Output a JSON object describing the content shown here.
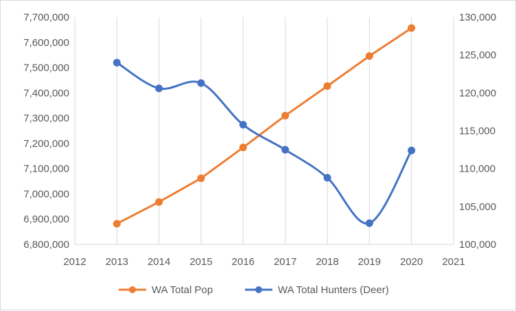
{
  "chart_data": {
    "type": "line",
    "title": "",
    "xlabel": "",
    "ylabel": "",
    "x": [
      2013,
      2014,
      2015,
      2016,
      2017,
      2018,
      2019,
      2020
    ],
    "xlim": [
      2012,
      2021
    ],
    "xticks": [
      "2012",
      "2013",
      "2014",
      "2015",
      "2016",
      "2017",
      "2018",
      "2019",
      "2020",
      "2021"
    ],
    "ylim_left": [
      6800000,
      7700000
    ],
    "yticks_left": [
      "6,800,000",
      "6,900,000",
      "7,000,000",
      "7,100,000",
      "7,200,000",
      "7,300,000",
      "7,400,000",
      "7,500,000",
      "7,600,000",
      "7,700,000"
    ],
    "ylim_right": [
      100000,
      130000
    ],
    "yticks_right": [
      "100,000",
      "105,000",
      "110,000",
      "115,000",
      "120,000",
      "125,000",
      "130,000"
    ],
    "grid": "vertical",
    "legend_position": "bottom",
    "series": [
      {
        "name": "WA Total Pop",
        "axis": "left",
        "color": "#ed7d31",
        "smooth": false,
        "values": [
          6882000,
          6968000,
          7062000,
          7184000,
          7310000,
          7427000,
          7546000,
          7657000
        ]
      },
      {
        "name": "WA Total Hunters (Deer)",
        "axis": "right",
        "color": "#4472c4",
        "smooth": true,
        "values": [
          124000,
          120600,
          121300,
          115800,
          112500,
          108800,
          102800,
          112400
        ]
      }
    ]
  }
}
